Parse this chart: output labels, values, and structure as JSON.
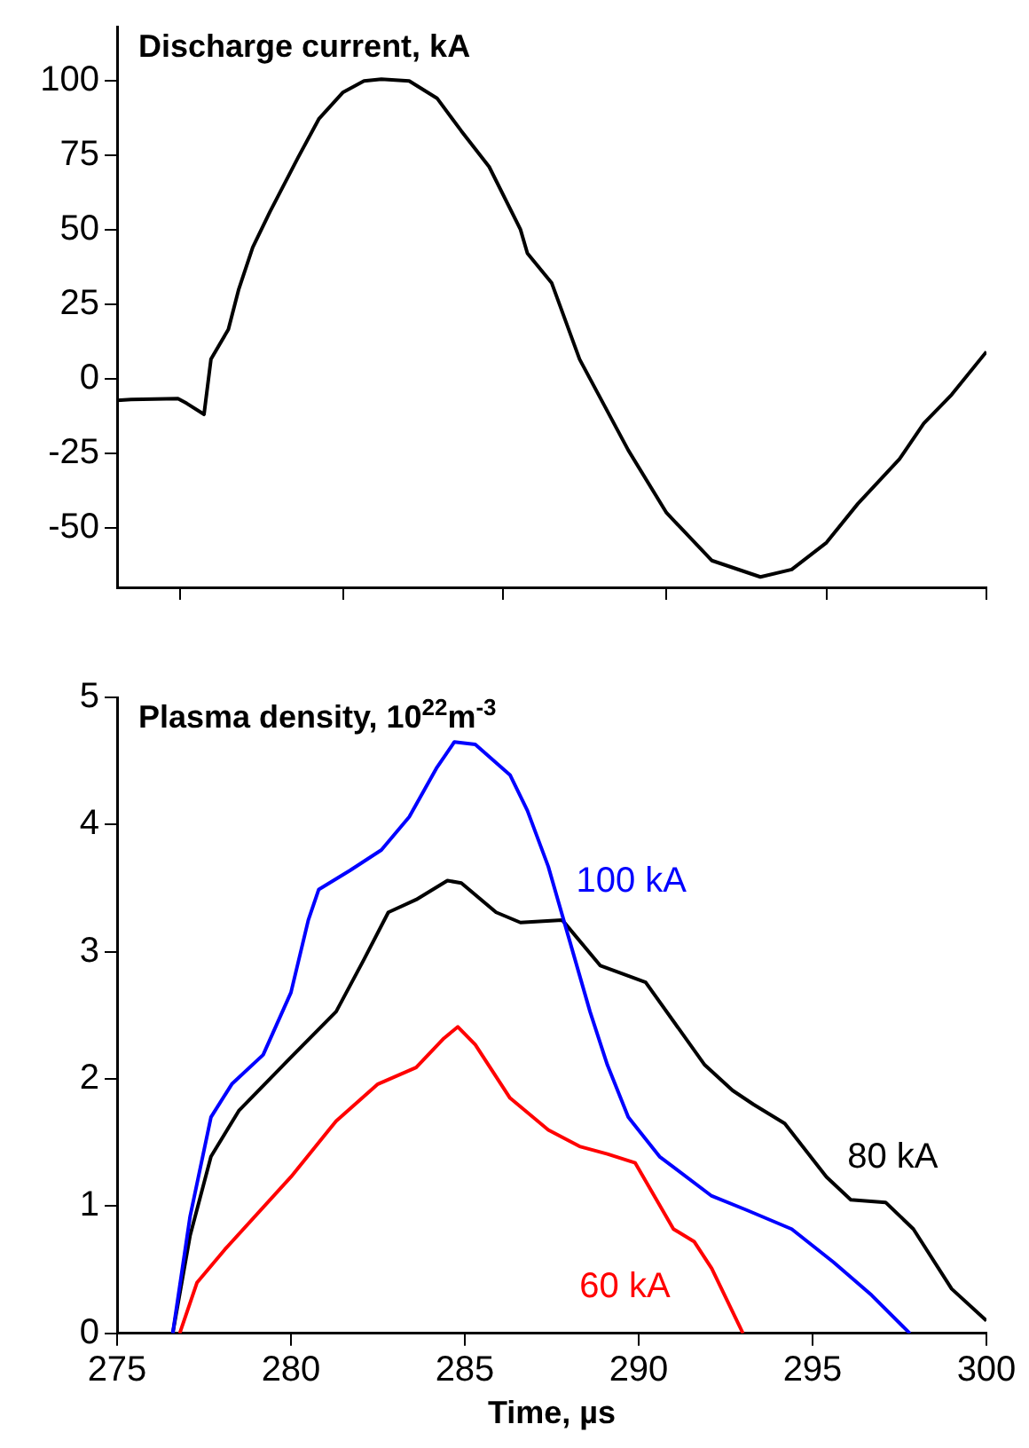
{
  "chart_data": [
    {
      "type": "line",
      "title": "Discharge current, kA",
      "xlim": [
        275,
        300
      ],
      "xticks": [
        {
          "value": 276.8,
          "label": null
        },
        {
          "value": 281.5,
          "label": null
        },
        {
          "value": 286.1,
          "label": null
        },
        {
          "value": 290.8,
          "label": null
        },
        {
          "value": 295.4,
          "label": null
        },
        {
          "value": 300,
          "label": null
        }
      ],
      "ylim": [
        -70,
        118
      ],
      "yticks": [
        -50,
        -25,
        0,
        25,
        50,
        75,
        100
      ],
      "tick_labels": "y",
      "grid": false,
      "legend": false,
      "marker": "none",
      "line_style": "solid",
      "series": [
        {
          "color": "#000000",
          "x": [
            275,
            275.4,
            276.75,
            277.0,
            277.5,
            277.7,
            278.2,
            278.5,
            278.9,
            279.4,
            280.2,
            280.8,
            281.5,
            282.1,
            282.6,
            283.4,
            284.2,
            284.9,
            285.7,
            286.6,
            286.8,
            287.5,
            288.3,
            289.7,
            290.8,
            292.1,
            293.5,
            294.4,
            295.4,
            296.3,
            297.5,
            298.2,
            299.0,
            300
          ],
          "values": [
            -7.3,
            -7,
            -6.7,
            -8.3,
            -12,
            6.5,
            16.5,
            30,
            44,
            56,
            74,
            87,
            96,
            99.8,
            100.4,
            99.8,
            94,
            83,
            71,
            50,
            42,
            32,
            6.5,
            -24,
            -45,
            -61,
            -66.5,
            -64,
            -55,
            -42,
            -27,
            -15,
            -5.4,
            9
          ]
        }
      ]
    },
    {
      "type": "line",
      "title": "Plasma density, 10$^{22}$m$^{-3}$",
      "xlabel": "Time, µs",
      "xlim": [
        275,
        300
      ],
      "xticks": [
        275,
        280,
        285,
        290,
        295,
        300
      ],
      "ylim": [
        0,
        5
      ],
      "yticks": [
        0,
        1,
        2,
        3,
        4,
        5
      ],
      "grid": false,
      "legend": false,
      "marker": "none",
      "line_style": "solid",
      "series": [
        {
          "name": "100 kA",
          "color": "#0000ff",
          "x": [
            276.6,
            277.1,
            277.7,
            278.3,
            279.2,
            280.0,
            280.5,
            280.8,
            281.7,
            282.6,
            283.4,
            284.2,
            284.7,
            285.3,
            286.3,
            286.8,
            287.4,
            288.0,
            288.6,
            289.1,
            289.7,
            290.6,
            292.1,
            293.1,
            294.4,
            295.6,
            296.7,
            297.8
          ],
          "values": [
            0,
            0.92,
            1.7,
            1.96,
            2.19,
            2.68,
            3.25,
            3.49,
            3.64,
            3.8,
            4.06,
            4.45,
            4.65,
            4.63,
            4.39,
            4.11,
            3.67,
            3.1,
            2.53,
            2.11,
            1.7,
            1.39,
            1.08,
            0.97,
            0.82,
            0.56,
            0.3,
            0
          ]
        },
        {
          "name": "80 kA",
          "color": "#000000",
          "x": [
            276.6,
            277.1,
            277.7,
            278.5,
            280.0,
            281.3,
            282.1,
            282.8,
            283.6,
            284.5,
            284.9,
            285.9,
            286.6,
            287.8,
            288.9,
            289.7,
            290.2,
            291.9,
            292.7,
            293.3,
            294.2,
            295.4,
            296.1,
            297.1,
            297.9,
            299.0,
            300
          ],
          "values": [
            0,
            0.77,
            1.39,
            1.75,
            2.17,
            2.53,
            2.94,
            3.31,
            3.41,
            3.56,
            3.54,
            3.31,
            3.23,
            3.25,
            2.89,
            2.81,
            2.76,
            2.11,
            1.91,
            1.8,
            1.65,
            1.23,
            1.05,
            1.03,
            0.82,
            0.35,
            0.1
          ]
        },
        {
          "name": "60 kA",
          "color": "#ff0000",
          "x": [
            276.8,
            277.3,
            278.1,
            280.0,
            281.3,
            282.5,
            283.6,
            284.4,
            284.8,
            285.3,
            286.3,
            287.4,
            288.3,
            289.1,
            289.9,
            291.0,
            291.6,
            292.1,
            293.0
          ],
          "values": [
            0,
            0.4,
            0.66,
            1.23,
            1.67,
            1.96,
            2.09,
            2.32,
            2.41,
            2.27,
            1.85,
            1.6,
            1.47,
            1.41,
            1.34,
            0.82,
            0.72,
            0.51,
            0
          ]
        }
      ]
    }
  ]
}
